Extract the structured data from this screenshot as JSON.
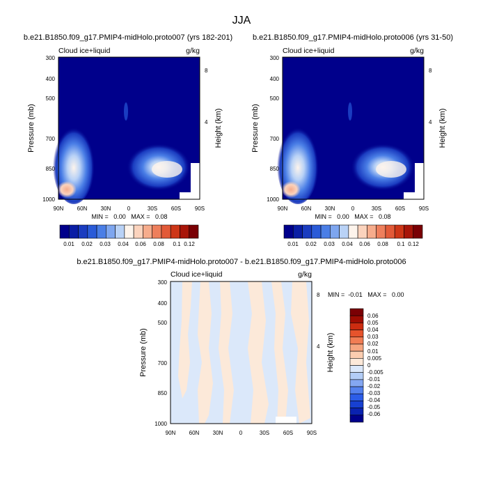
{
  "page": {
    "title": "JJA"
  },
  "colors": {
    "top_scale": [
      "#00008b",
      "#0a1ea5",
      "#1a3cc0",
      "#2a5bd8",
      "#4a7ee6",
      "#7ea6ef",
      "#b9d2f6",
      "#fdf4ec",
      "#fbd3bd",
      "#f6ac8c",
      "#ee7f5c",
      "#e25a38",
      "#cd3617",
      "#a81509",
      "#7a0004"
    ],
    "diff_scale": [
      "#00008b",
      "#0a22b0",
      "#1740d0",
      "#2c5de8",
      "#5481ee",
      "#84a7f2",
      "#b3cdf6",
      "#dbe8fa",
      "#fce9d9",
      "#fbcdb0",
      "#f6a680",
      "#f17d54",
      "#e6532c",
      "#cc2c10",
      "#9e0c02",
      "#7a0004"
    ],
    "plot_border": "#000000"
  },
  "panels": [
    {
      "title": "b.e21.B1850.f09_g17.PMIP4-midHolo.proto007 (yrs 182-201)",
      "left_label": "Cloud ice+liquid",
      "right_label": "g/kg",
      "ylabel": "Pressure (mb)",
      "y2label": "Height (km)",
      "stats": "MIN =   0.00   MAX =   0.08"
    },
    {
      "title": "b.e21.B1850.f09_g17.PMIP4-midHolo.proto006 (yrs 31-50)",
      "left_label": "Cloud ice+liquid",
      "right_label": "g/kg",
      "ylabel": "Pressure (mb)",
      "y2label": "Height (km)",
      "stats": "MIN =   0.00   MAX =   0.08"
    },
    {
      "title": "b.e21.B1850.f09_g17.PMIP4-midHolo.proto007 - b.e21.B1850.f09_g17.PMIP4-midHolo.proto006",
      "left_label": "Cloud ice+liquid",
      "right_label": "g/kg",
      "ylabel": "Pressure (mb)",
      "y2label": "Height (km)",
      "stats": "MIN =  -0.01   MAX =   0.00"
    }
  ],
  "chart_data": {
    "type": "heatmap",
    "x_ticks": [
      "90N",
      "60N",
      "30N",
      "0",
      "30S",
      "60S",
      "90S"
    ],
    "y_ticks": [
      "300",
      "400",
      "500",
      "700",
      "850",
      "1000"
    ],
    "y_tick_values": [
      300,
      400,
      500,
      700,
      850,
      1000
    ],
    "y2_ticks": [
      "8",
      "4"
    ],
    "xlim": [
      "90N",
      "90S"
    ],
    "ylim": [
      1000,
      300
    ],
    "top_colorbar_labels": [
      "0.01",
      "0.02",
      "0.03",
      "0.04",
      "0.06",
      "0.08",
      "0.1",
      "0.12"
    ],
    "diff_colorbar_labels": [
      "0.06",
      "0.05",
      "0.04",
      "0.03",
      "0.02",
      "0.01",
      "0.005",
      "0",
      "-0.005",
      "-0.01",
      "-0.02",
      "-0.03",
      "-0.04",
      "-0.05",
      "-0.06"
    ]
  }
}
